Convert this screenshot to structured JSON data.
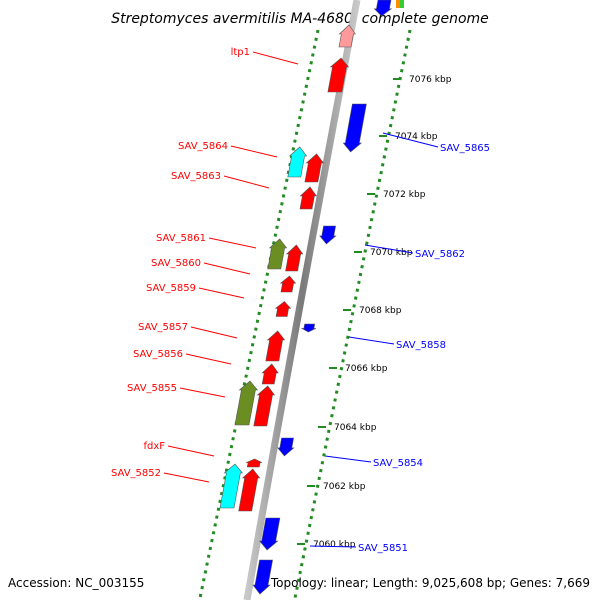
{
  "title": "Streptomyces avermitilis MA-4680, complete genome",
  "footer": {
    "accession": "Accession: NC_003155",
    "stats": "Topology: linear; Length: 9,025,608 bp; Genes: 7,669"
  },
  "colors": {
    "forward_strand_gene": "#ff0000",
    "reverse_strand_gene": "#0000ff",
    "cyan_gene": "#00ffff",
    "olive_gene": "#6b8e23",
    "ruler_dots": "#228b22",
    "backbone": "#999999"
  },
  "scale_ticks": [
    {
      "label": "7076 kbp"
    },
    {
      "label": "7074 kbp"
    },
    {
      "label": "7072 kbp"
    },
    {
      "label": "7070 kbp"
    },
    {
      "label": "7068 kbp"
    },
    {
      "label": "7066 kbp"
    },
    {
      "label": "7064 kbp"
    },
    {
      "label": "7062 kbp"
    },
    {
      "label": "7060 kbp"
    }
  ],
  "gene_labels_left": [
    {
      "name": "ltp1"
    },
    {
      "name": "SAV_5864"
    },
    {
      "name": "SAV_5863"
    },
    {
      "name": "SAV_5861"
    },
    {
      "name": "SAV_5860"
    },
    {
      "name": "SAV_5859"
    },
    {
      "name": "SAV_5857"
    },
    {
      "name": "SAV_5856"
    },
    {
      "name": "SAV_5855"
    },
    {
      "name": "fdxF"
    },
    {
      "name": "SAV_5852"
    }
  ],
  "gene_labels_right": [
    {
      "name": "SAV_5865"
    },
    {
      "name": "SAV_5862"
    },
    {
      "name": "SAV_5858"
    },
    {
      "name": "SAV_5854"
    },
    {
      "name": "SAV_5851"
    }
  ]
}
